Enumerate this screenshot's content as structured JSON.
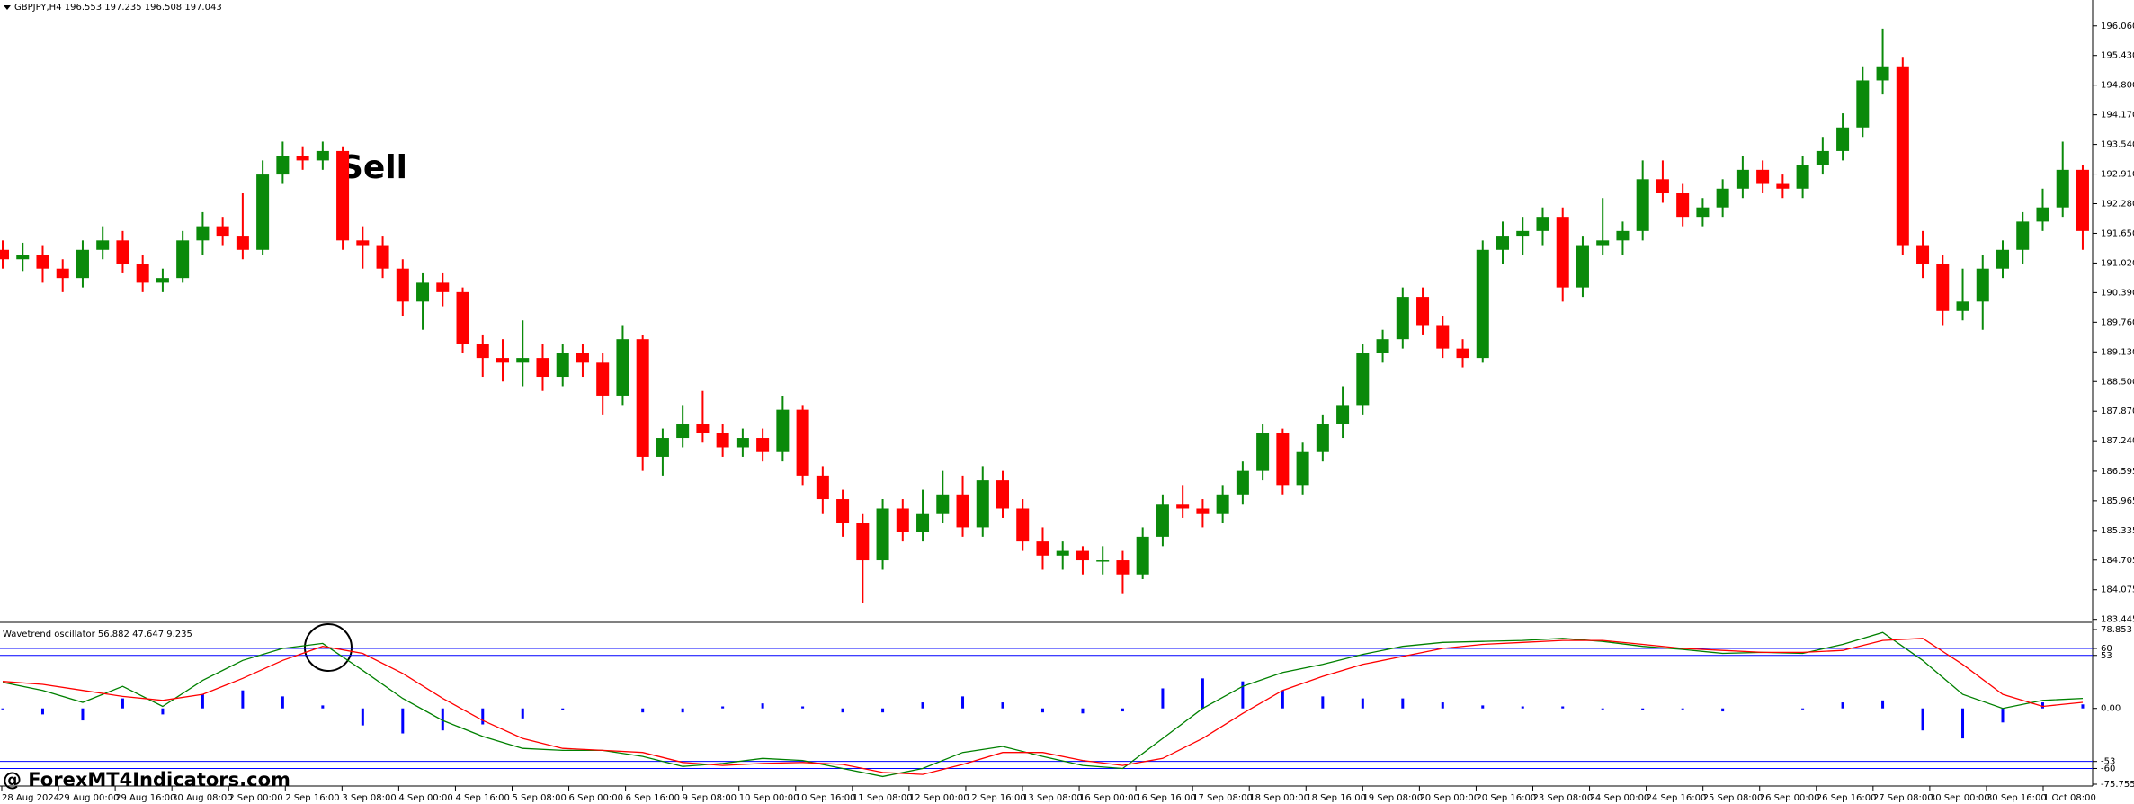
{
  "header": "GBPJPY,H4  196.553 197.235 196.508 197.043",
  "watermark": "@ ForexMT4Indicators.com",
  "xtick_labels": [
    "28 Aug 2024",
    "29 Aug 00:00",
    "29 Aug 16:00",
    "30 Aug 08:00",
    "2 Sep 00:00",
    "2 Sep 16:00",
    "3 Sep 08:00",
    "4 Sep 00:00",
    "4 Sep 16:00",
    "5 Sep 08:00",
    "6 Sep 00:00",
    "6 Sep 16:00",
    "9 Sep 08:00",
    "10 Sep 00:00",
    "10 Sep 16:00",
    "11 Sep 08:00",
    "12 Sep 00:00",
    "12 Sep 16:00",
    "13 Sep 08:00",
    "16 Sep 00:00",
    "16 Sep 16:00",
    "17 Sep 08:00",
    "18 Sep 00:00",
    "18 Sep 16:00",
    "19 Sep 08:00",
    "20 Sep 00:00",
    "20 Sep 16:00",
    "23 Sep 08:00",
    "24 Sep 00:00",
    "24 Sep 16:00",
    "25 Sep 08:00",
    "26 Sep 00:00",
    "26 Sep 16:00",
    "27 Sep 08:00",
    "30 Sep 00:00",
    "30 Sep 16:00",
    "1 Oct 08:00"
  ],
  "chart_data": [
    {
      "type": "candlestick",
      "annotation": "Sell",
      "up_color": "#0a8a0a",
      "down_color": "#ff0000",
      "ylim": [
        183.42,
        196.61
      ],
      "yticks": [
        {
          "value": 196.06,
          "label": "196.060"
        },
        {
          "value": 195.43,
          "label": "195.430"
        },
        {
          "value": 194.8,
          "label": "194.800"
        },
        {
          "value": 194.17,
          "label": "194.170"
        },
        {
          "value": 193.54,
          "label": "193.540"
        },
        {
          "value": 192.91,
          "label": "192.910"
        },
        {
          "value": 192.28,
          "label": "192.280"
        },
        {
          "value": 191.65,
          "label": "191.650"
        },
        {
          "value": 191.02,
          "label": "191.020"
        },
        {
          "value": 190.39,
          "label": "190.390"
        },
        {
          "value": 189.76,
          "label": "189.760"
        },
        {
          "value": 189.13,
          "label": "189.130"
        },
        {
          "value": 188.5,
          "label": "188.500"
        },
        {
          "value": 187.87,
          "label": "187.870"
        },
        {
          "value": 187.24,
          "label": "187.240"
        },
        186.595,
        185.965,
        185.335,
        184.705,
        184.075,
        183.445
      ],
      "candles": [
        [
          191.3,
          191.5,
          190.9,
          191.1
        ],
        [
          191.1,
          191.45,
          190.85,
          191.2
        ],
        [
          191.2,
          191.4,
          190.6,
          190.9
        ],
        [
          190.9,
          191.1,
          190.4,
          190.7
        ],
        [
          190.7,
          191.5,
          190.5,
          191.3
        ],
        [
          191.3,
          191.8,
          191.1,
          191.5
        ],
        [
          191.5,
          191.7,
          190.8,
          191.0
        ],
        [
          191.0,
          191.2,
          190.4,
          190.6
        ],
        [
          190.6,
          190.9,
          190.4,
          190.7
        ],
        [
          190.7,
          191.7,
          190.6,
          191.5
        ],
        [
          191.5,
          192.1,
          191.2,
          191.8
        ],
        [
          191.8,
          192.0,
          191.4,
          191.6
        ],
        [
          191.6,
          192.5,
          191.1,
          191.3
        ],
        [
          191.3,
          193.2,
          191.2,
          192.9
        ],
        [
          192.9,
          193.6,
          192.7,
          193.3
        ],
        [
          193.3,
          193.5,
          193.0,
          193.2
        ],
        [
          193.2,
          193.6,
          193.0,
          193.4
        ],
        [
          193.4,
          193.5,
          191.3,
          191.5
        ],
        [
          191.5,
          191.8,
          190.9,
          191.4
        ],
        [
          191.4,
          191.6,
          190.7,
          190.9
        ],
        [
          190.9,
          191.1,
          189.9,
          190.2
        ],
        [
          190.2,
          190.8,
          189.6,
          190.6
        ],
        [
          190.6,
          190.8,
          190.1,
          190.4
        ],
        [
          190.4,
          190.5,
          189.1,
          189.3
        ],
        [
          189.3,
          189.5,
          188.6,
          189.0
        ],
        [
          189.0,
          189.4,
          188.5,
          188.9
        ],
        [
          188.9,
          189.8,
          188.4,
          189.0
        ],
        [
          189.0,
          189.3,
          188.3,
          188.6
        ],
        [
          188.6,
          189.3,
          188.4,
          189.1
        ],
        [
          189.1,
          189.3,
          188.6,
          188.9
        ],
        [
          188.9,
          189.1,
          187.8,
          188.2
        ],
        [
          188.2,
          189.7,
          188.0,
          189.4
        ],
        [
          189.4,
          189.5,
          186.6,
          186.9
        ],
        [
          186.9,
          187.5,
          186.5,
          187.3
        ],
        [
          187.3,
          188.0,
          187.1,
          187.6
        ],
        [
          187.6,
          188.3,
          187.2,
          187.4
        ],
        [
          187.4,
          187.6,
          186.9,
          187.1
        ],
        [
          187.1,
          187.5,
          186.9,
          187.3
        ],
        [
          187.3,
          187.5,
          186.8,
          187.0
        ],
        [
          187.0,
          188.2,
          186.8,
          187.9
        ],
        [
          187.9,
          188.0,
          186.3,
          186.5
        ],
        [
          186.5,
          186.7,
          185.7,
          186.0
        ],
        [
          186.0,
          186.2,
          185.2,
          185.5
        ],
        [
          185.5,
          185.7,
          183.8,
          184.7
        ],
        [
          184.7,
          186.0,
          184.5,
          185.8
        ],
        [
          185.8,
          186.0,
          185.1,
          185.3
        ],
        [
          185.3,
          186.2,
          185.1,
          185.7
        ],
        [
          185.7,
          186.6,
          185.5,
          186.1
        ],
        [
          186.1,
          186.5,
          185.2,
          185.4
        ],
        [
          185.4,
          186.7,
          185.2,
          186.4
        ],
        [
          186.4,
          186.6,
          185.6,
          185.8
        ],
        [
          185.8,
          186.0,
          184.9,
          185.1
        ],
        [
          185.1,
          185.4,
          184.5,
          184.8
        ],
        [
          184.8,
          185.1,
          184.5,
          184.9
        ],
        [
          184.9,
          185.0,
          184.4,
          184.7
        ],
        [
          184.7,
          185.0,
          184.4,
          184.7
        ],
        [
          184.7,
          184.9,
          184.0,
          184.4
        ],
        [
          184.4,
          185.4,
          184.3,
          185.2
        ],
        [
          185.2,
          186.1,
          185.0,
          185.9
        ],
        [
          185.9,
          186.3,
          185.6,
          185.8
        ],
        [
          185.8,
          186.0,
          185.4,
          185.7
        ],
        [
          185.7,
          186.3,
          185.5,
          186.1
        ],
        [
          186.1,
          186.8,
          185.9,
          186.6
        ],
        [
          186.6,
          187.6,
          186.4,
          187.4
        ],
        [
          187.4,
          187.5,
          186.1,
          186.3
        ],
        [
          186.3,
          187.2,
          186.1,
          187.0
        ],
        [
          187.0,
          187.8,
          186.8,
          187.6
        ],
        [
          187.6,
          188.4,
          187.3,
          188.0
        ],
        [
          188.0,
          189.3,
          187.8,
          189.1
        ],
        [
          189.1,
          189.6,
          188.9,
          189.4
        ],
        [
          189.4,
          190.5,
          189.2,
          190.3
        ],
        [
          190.3,
          190.5,
          189.5,
          189.7
        ],
        [
          189.7,
          189.9,
          189.0,
          189.2
        ],
        [
          189.2,
          189.4,
          188.8,
          189.0
        ],
        [
          189.0,
          191.5,
          188.9,
          191.3
        ],
        [
          191.3,
          191.9,
          191.0,
          191.6
        ],
        [
          191.6,
          192.0,
          191.2,
          191.7
        ],
        [
          191.7,
          192.2,
          191.4,
          192.0
        ],
        [
          192.0,
          192.2,
          190.2,
          190.5
        ],
        [
          190.5,
          191.6,
          190.3,
          191.4
        ],
        [
          191.4,
          192.4,
          191.2,
          191.5
        ],
        [
          191.5,
          191.9,
          191.2,
          191.7
        ],
        [
          191.7,
          193.2,
          191.5,
          192.8
        ],
        [
          192.8,
          193.2,
          192.3,
          192.5
        ],
        [
          192.5,
          192.7,
          191.8,
          192.0
        ],
        [
          192.0,
          192.4,
          191.8,
          192.2
        ],
        [
          192.2,
          192.8,
          192.0,
          192.6
        ],
        [
          192.6,
          193.3,
          192.4,
          193.0
        ],
        [
          193.0,
          193.2,
          192.5,
          192.7
        ],
        [
          192.7,
          192.9,
          192.4,
          192.6
        ],
        [
          192.6,
          193.3,
          192.4,
          193.1
        ],
        [
          193.1,
          193.7,
          192.9,
          193.4
        ],
        [
          193.4,
          194.2,
          193.2,
          193.9
        ],
        [
          193.9,
          195.2,
          193.7,
          194.9
        ],
        [
          194.9,
          196.0,
          194.6,
          195.2
        ],
        [
          195.2,
          195.4,
          191.2,
          191.4
        ],
        [
          191.4,
          191.7,
          190.7,
          191.0
        ],
        [
          191.0,
          191.2,
          189.7,
          190.0
        ],
        [
          190.0,
          190.9,
          189.8,
          190.2
        ],
        [
          190.2,
          191.2,
          189.6,
          190.9
        ],
        [
          190.9,
          191.5,
          190.7,
          191.3
        ],
        [
          191.3,
          192.1,
          191.0,
          191.9
        ],
        [
          191.9,
          192.6,
          191.7,
          192.2
        ],
        [
          192.2,
          193.6,
          192.0,
          193.0
        ],
        [
          193.0,
          193.1,
          191.3,
          191.7
        ]
      ]
    },
    {
      "type": "line",
      "title": "Wavetrend oscillator 56.882 47.647 9.235",
      "ylim": [
        -75.755,
        78.853
      ],
      "yticks": [
        78.853,
        60,
        53,
        {
          "value": 0,
          "label": "0.00"
        },
        -53,
        -60,
        -75.755
      ],
      "levels": [
        60,
        53,
        -53,
        -60
      ],
      "level_color": "#0000ff",
      "series": [
        {
          "color": "#008000",
          "values": [
            26,
            18,
            6,
            22,
            2,
            28,
            48,
            60,
            65,
            38,
            10,
            -12,
            -28,
            -40,
            -42,
            -42,
            -48,
            -58,
            -55,
            -50,
            -52,
            -60,
            -68,
            -60,
            -44,
            -38,
            -48,
            -57,
            -60,
            -30,
            0,
            22,
            36,
            44,
            54,
            62,
            66,
            67,
            68,
            70,
            67,
            62,
            59,
            55,
            56,
            55,
            64,
            76,
            48,
            14,
            0,
            8,
            10
          ]
        },
        {
          "color": "#ff0000",
          "values": [
            27,
            24,
            18,
            12,
            8,
            14,
            30,
            48,
            62,
            55,
            35,
            10,
            -12,
            -30,
            -40,
            -42,
            -44,
            -54,
            -57,
            -55,
            -54,
            -56,
            -64,
            -66,
            -56,
            -44,
            -44,
            -52,
            -57,
            -50,
            -30,
            -5,
            18,
            32,
            44,
            52,
            60,
            64,
            66,
            68,
            68,
            64,
            60,
            58,
            56,
            56,
            58,
            68,
            70,
            44,
            14,
            2,
            6
          ]
        }
      ],
      "histogram": {
        "color": "#0000ff",
        "values": [
          -1,
          -6,
          -12,
          10,
          -6,
          14,
          18,
          12,
          3,
          -17,
          -25,
          -22,
          -16,
          -10,
          -2,
          0,
          -4,
          -4,
          2,
          5,
          2,
          -4,
          -4,
          6,
          12,
          6,
          -4,
          -5,
          -3,
          20,
          30,
          27,
          18,
          12,
          10,
          10,
          6,
          3,
          2,
          2,
          -1,
          -2,
          -1,
          -3,
          0,
          -1,
          6,
          8,
          -22,
          -30,
          -14,
          6,
          4
        ]
      }
    }
  ]
}
